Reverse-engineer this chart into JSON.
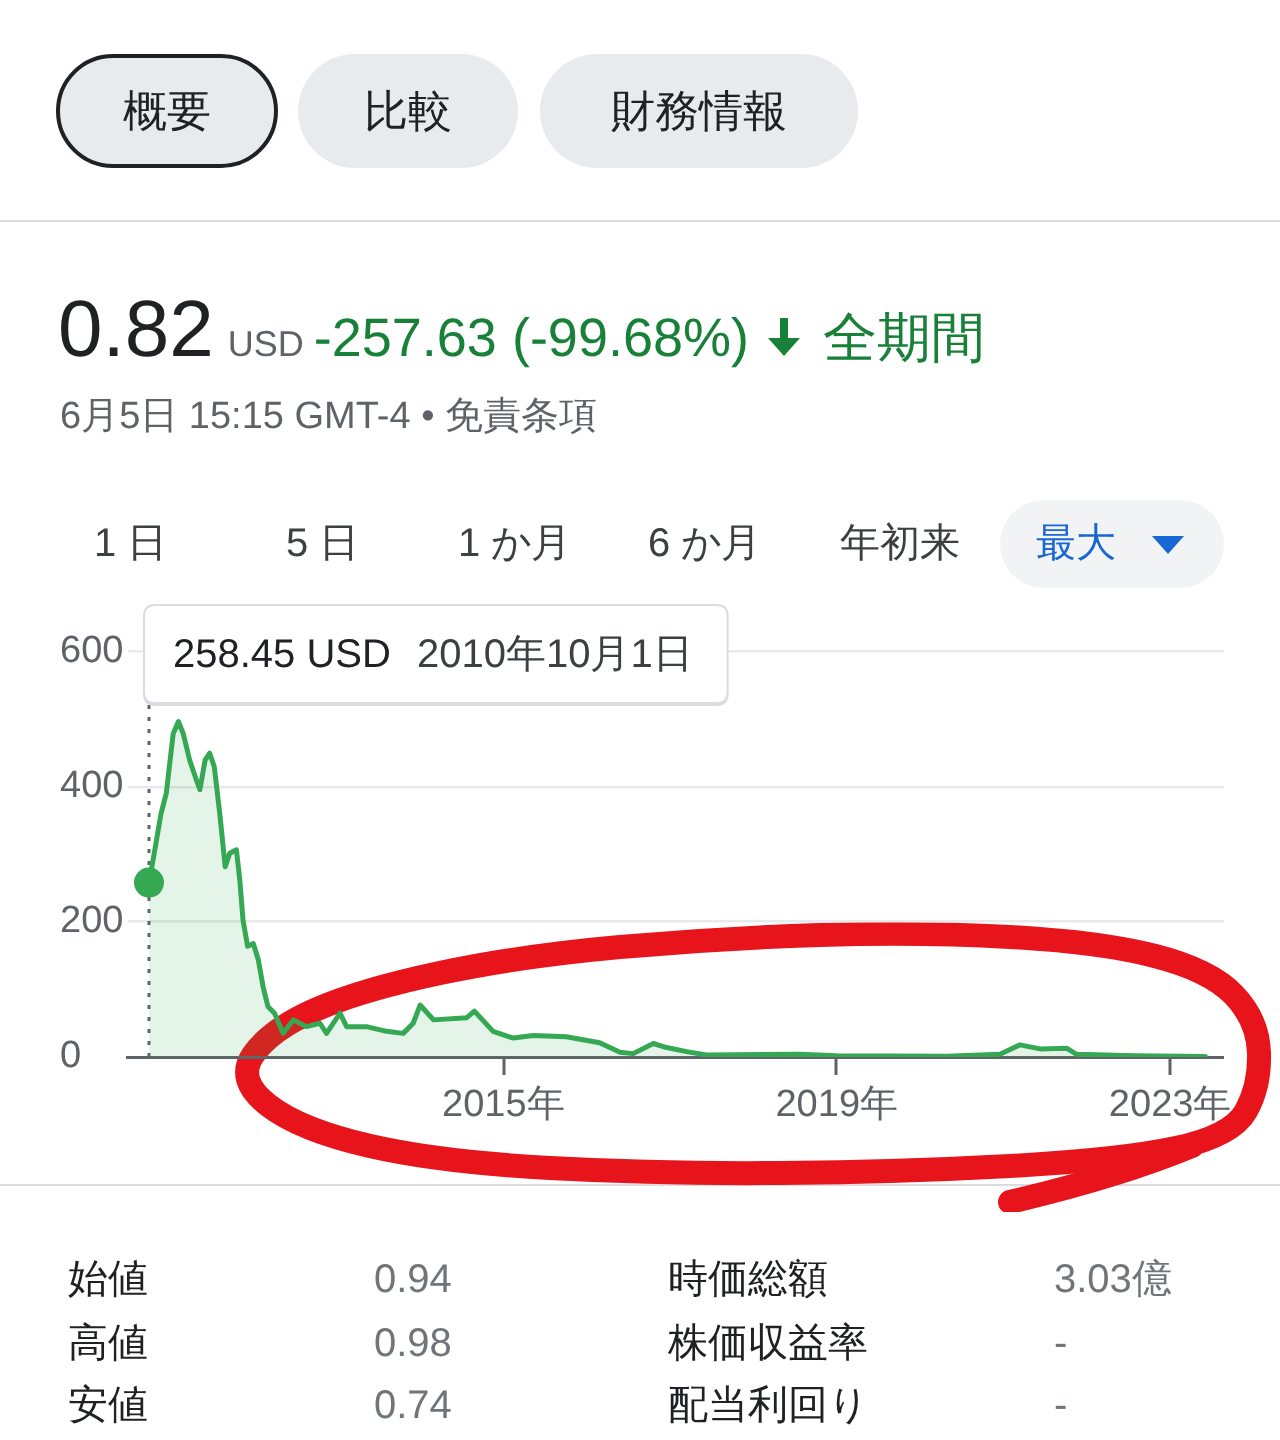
{
  "chart_data": {
    "type": "area",
    "title": "0.82",
    "subtitle": "6月5日 15:15 GMT-4 • 免責条項",
    "annotations": [
      "概要",
      "比較",
      "財務情報",
      "USD",
      "-257.63 (-99.68%)",
      "全期間",
      "1 日",
      "5 日",
      "1 か月",
      "6 か月",
      "年初来",
      "最大",
      "258.45 USD",
      "2010年10月1日",
      "始値",
      "0.94",
      "時価総額",
      "3.03億",
      "高値",
      "0.98",
      "株価収益率",
      "-",
      "安値",
      "0.74",
      "配当利回り",
      "-"
    ],
    "series": [
      {
        "color": "#34a853",
        "x": [
          "2010-10-01",
          "2010-10-19",
          "2010-11-23",
          "2010-12-16",
          "2011-01-15",
          "2011-02-07",
          "2011-02-28",
          "2011-03-28",
          "2011-04-27",
          "2011-05-12",
          "2011-06-04",
          "2011-06-24",
          "2011-07-14",
          "2011-08-07",
          "2011-08-31",
          "2011-09-20",
          "2011-10-19",
          "2011-11-03",
          "2011-11-17",
          "2011-12-07",
          "2012-01-01",
          "2012-01-23",
          "2012-02-13",
          "2012-03-05",
          "2012-04-03",
          "2012-05-11",
          "2012-06-24",
          "2012-08-21",
          "2012-10-19",
          "2012-11-17",
          "2013-01-15",
          "2013-02-13",
          "2013-05-11",
          "2013-08-07",
          "2013-10-19",
          "2013-12-02",
          "2014-01-01",
          "2014-03-01",
          "2014-07-23",
          "2014-08-27",
          "2014-11-17",
          "2015-02-13",
          "2015-05-12",
          "2015-10-04",
          "2016-02-27",
          "2016-05-26",
          "2016-07-23",
          "2016-10-19",
          "2016-12-16",
          "2017-03-14",
          "2017-06-09",
          "2018-07-23",
          "2019-01-01",
          "2020-04-26",
          "2020-12-16",
          "2021-03-14",
          "2021-06-10",
          "2021-10-04",
          "2021-11-17",
          "2022-07-23",
          "2023-06-05"
        ],
        "values": [
          258.45,
          292,
          361,
          391,
          479,
          497,
          479,
          440,
          410,
          396,
          440,
          450,
          430,
          361,
          282,
          302,
          307,
          262,
          203,
          164,
          168,
          144,
          104,
          75,
          65,
          35,
          55,
          45,
          50,
          35,
          65,
          45,
          45,
          38,
          35,
          50,
          77,
          55,
          58,
          68,
          38,
          28,
          32,
          30,
          21,
          7,
          5,
          20,
          14,
          8,
          3,
          4,
          2,
          1,
          4,
          18,
          12,
          13,
          4,
          2,
          0.82
        ]
      },
      {
        "type": "scatter",
        "color": "#34a853",
        "marker": "circle",
        "x": [
          "2010-10-01"
        ],
        "values": [
          258.45
        ]
      }
    ],
    "xlim": [
      "2010-07-01",
      "2023-08-25"
    ],
    "xticks": [
      {
        "value": "2015",
        "label": "2015年"
      },
      {
        "value": "2019",
        "label": "2019年"
      },
      {
        "value": "2023",
        "label": "2023年"
      }
    ],
    "ylim": [
      0,
      600
    ],
    "yticks": [
      0,
      200,
      400,
      600
    ],
    "grid": "y",
    "ref_lines": [
      {
        "axis": "x",
        "value": "2010-10-01",
        "line_style": "dotted",
        "color": "#5f6368"
      }
    ]
  }
}
